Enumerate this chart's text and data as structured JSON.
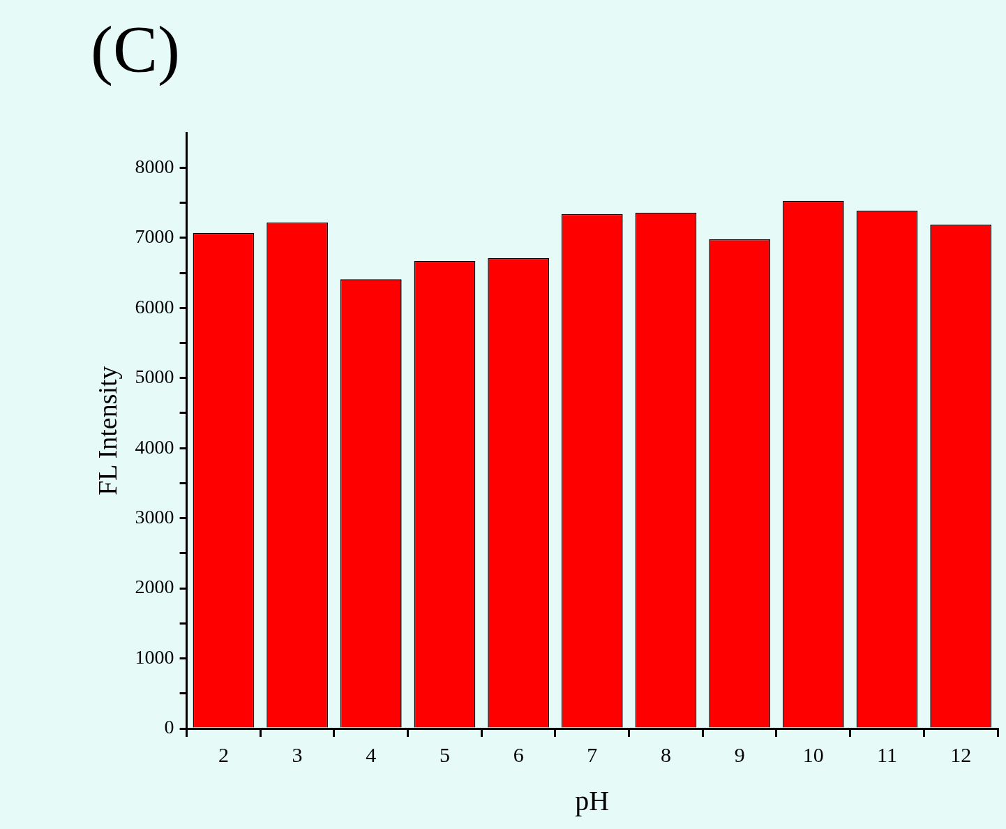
{
  "chart_data": {
    "type": "bar",
    "title": "(C)",
    "xlabel": "pH",
    "ylabel": "FL Intensity",
    "categories": [
      "2",
      "3",
      "4",
      "5",
      "6",
      "7",
      "8",
      "9",
      "10",
      "11",
      "12"
    ],
    "values": [
      7070,
      7220,
      6410,
      6670,
      6710,
      7340,
      7360,
      6980,
      7530,
      7390,
      7190
    ],
    "color": "#ff0000",
    "ylim": [
      0,
      8500
    ],
    "yticks": [
      0,
      {
        "value": 500,
        "label": null
      },
      1000,
      {
        "value": 1500,
        "label": null
      },
      2000,
      {
        "value": 2500,
        "label": null
      },
      3000,
      {
        "value": 3500,
        "label": null
      },
      4000,
      {
        "value": 4500,
        "label": null
      },
      5000,
      {
        "value": 5500,
        "label": null
      },
      6000,
      {
        "value": 6500,
        "label": null
      },
      7000,
      {
        "value": 7500,
        "label": null
      },
      8000
    ],
    "legend": false
  }
}
